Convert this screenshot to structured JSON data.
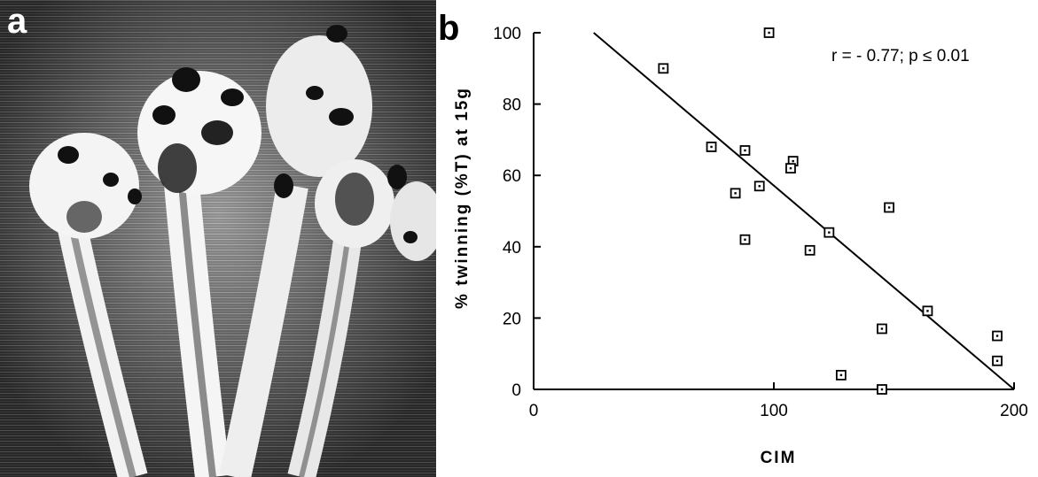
{
  "panels": {
    "a_label": "a",
    "b_label": "b"
  },
  "chart_data": {
    "type": "scatter",
    "title": "",
    "xlabel": "CIM",
    "ylabel": "% twinning (%T) at 15g",
    "xlim": [
      0,
      200
    ],
    "ylim": [
      0,
      100
    ],
    "xticks": [
      0,
      100,
      200
    ],
    "yticks": [
      0,
      20,
      40,
      60,
      80,
      100
    ],
    "annotation": "r = - 0.77; p ≤ 0.01",
    "marker": "open-square",
    "points": [
      {
        "x": 54,
        "y": 90
      },
      {
        "x": 98,
        "y": 100
      },
      {
        "x": 74,
        "y": 68
      },
      {
        "x": 88,
        "y": 67
      },
      {
        "x": 84,
        "y": 55
      },
      {
        "x": 94,
        "y": 57
      },
      {
        "x": 108,
        "y": 64
      },
      {
        "x": 107,
        "y": 62
      },
      {
        "x": 88,
        "y": 42
      },
      {
        "x": 115,
        "y": 39
      },
      {
        "x": 123,
        "y": 44
      },
      {
        "x": 148,
        "y": 51
      },
      {
        "x": 164,
        "y": 22
      },
      {
        "x": 145,
        "y": 17
      },
      {
        "x": 193,
        "y": 15
      },
      {
        "x": 193,
        "y": 8
      },
      {
        "x": 128,
        "y": 4
      },
      {
        "x": 145,
        "y": 0
      }
    ],
    "regression_line": {
      "x": [
        25,
        200
      ],
      "y": [
        100,
        0
      ]
    },
    "grid": false
  }
}
